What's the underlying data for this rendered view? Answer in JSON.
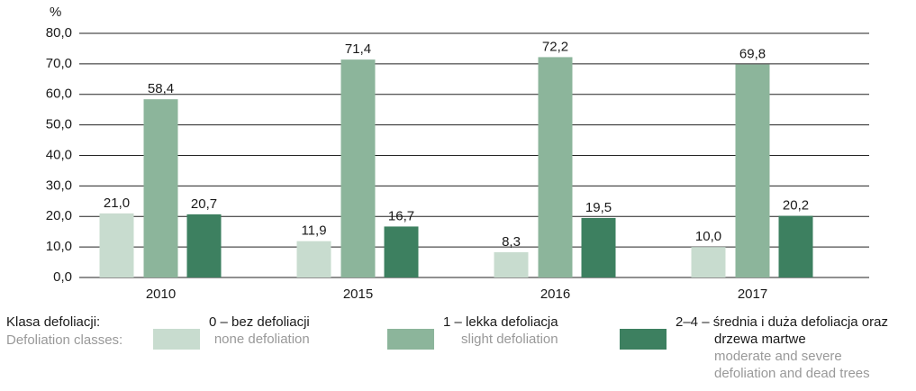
{
  "chart_data": {
    "type": "bar",
    "unit": "%",
    "categories": [
      "2010",
      "2015",
      "2016",
      "2017"
    ],
    "series": [
      {
        "name": "0 – bez defoliacji",
        "name_en": "none defoliation",
        "color": "#c8dccf",
        "values": [
          21.0,
          11.9,
          8.3,
          10.0
        ],
        "value_labels": [
          "21,0",
          "11,9",
          "8,3",
          "10,0"
        ]
      },
      {
        "name": "1 – lekka defoliacja",
        "name_en": "slight defoliation",
        "color": "#8cb59b",
        "values": [
          58.4,
          71.4,
          72.2,
          69.8
        ],
        "value_labels": [
          "58,4",
          "71,4",
          "72,2",
          "69,8"
        ]
      },
      {
        "name": "2–4 – średnia i duża defoliacja oraz drzewa martwe",
        "name_en": "moderate and severe defoliation and dead trees",
        "color": "#3d8060",
        "values": [
          20.7,
          16.7,
          19.5,
          20.2
        ],
        "value_labels": [
          "20,7",
          "16,7",
          "19,5",
          "20,2"
        ]
      }
    ],
    "ylim": [
      0,
      80
    ],
    "yticks": [
      {
        "value": 0,
        "label": "0,0"
      },
      {
        "value": 10,
        "label": "10,0"
      },
      {
        "value": 20,
        "label": "20,0"
      },
      {
        "value": 30,
        "label": "30,0"
      },
      {
        "value": 40,
        "label": "40,0"
      },
      {
        "value": 50,
        "label": "50,0"
      },
      {
        "value": 60,
        "label": "60,0"
      },
      {
        "value": 70,
        "label": "70,0"
      },
      {
        "value": 80,
        "label": "80,0"
      }
    ],
    "grid": true,
    "legend": {
      "title": "Klasa defoliacji:",
      "subtitle": "Defoliation classes:"
    }
  }
}
